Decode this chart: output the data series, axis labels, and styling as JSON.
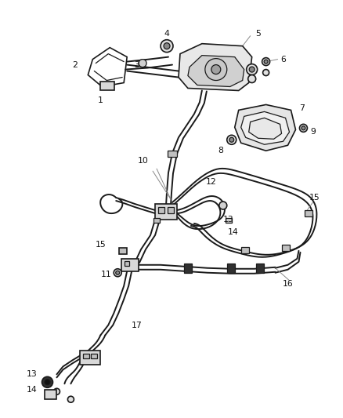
{
  "background_color": "#ffffff",
  "line_color": "#1a1a1a",
  "label_color": "#111111",
  "lw_tube": 1.4,
  "lw_component": 1.2,
  "lw_thin": 0.9,
  "fig_w": 4.38,
  "fig_h": 5.33,
  "dpi": 100
}
